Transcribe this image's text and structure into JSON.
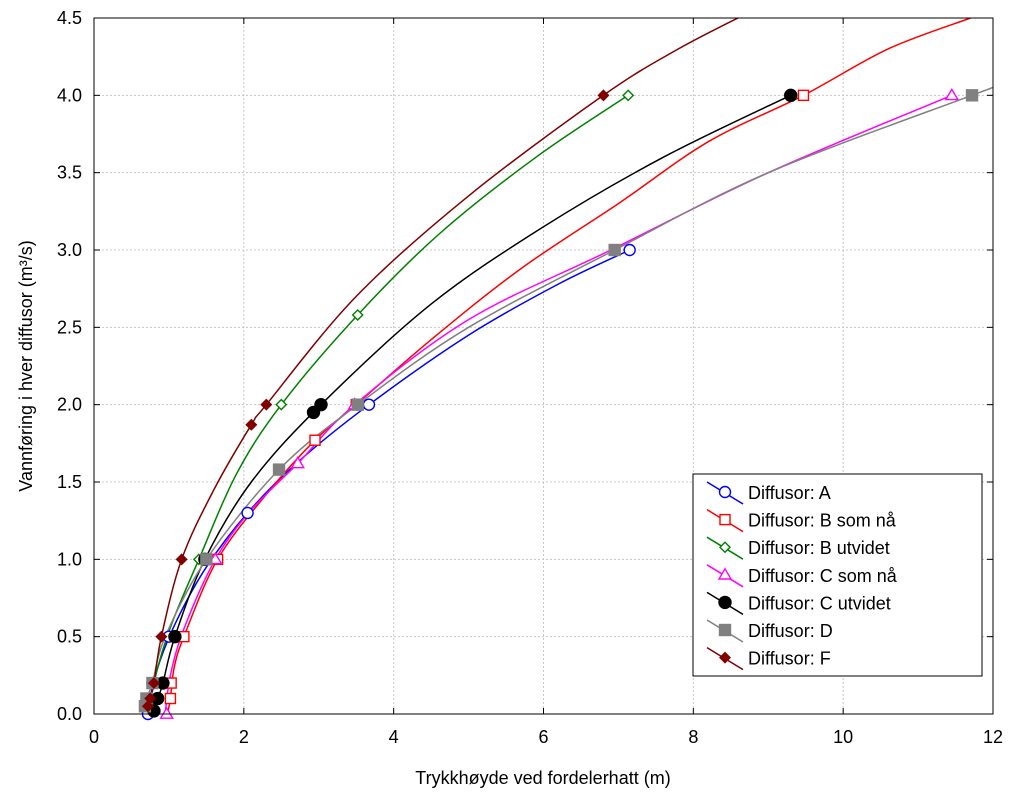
{
  "chart_data": {
    "type": "line",
    "xlabel": "Trykkhøyde ved fordelerhatt (m)",
    "ylabel": "Vannføring i hver diffusor (m³/s)",
    "xlim": [
      0,
      12
    ],
    "ylim": [
      0,
      4.5
    ],
    "xticks": [
      "0",
      "2",
      "4",
      "6",
      "8",
      "10",
      "12"
    ],
    "yticks": [
      "0.0",
      "0.5",
      "1.0",
      "1.5",
      "2.0",
      "2.5",
      "3.0",
      "3.5",
      "4.0",
      "4.5"
    ],
    "grid": true,
    "legend_position": "bottom-right",
    "series": [
      {
        "name": "Diffusor: A",
        "color": "#0000ff",
        "marker": "circle-open",
        "points": [
          [
            0.72,
            0.0
          ],
          [
            0.78,
            0.2
          ],
          [
            1.0,
            0.5
          ],
          [
            2.05,
            1.3
          ],
          [
            3.67,
            2.0
          ],
          [
            7.15,
            3.0
          ]
        ],
        "curve": [
          [
            0.7,
            0.0
          ],
          [
            0.85,
            0.3
          ],
          [
            1.1,
            0.6
          ],
          [
            1.5,
            0.95
          ],
          [
            2.05,
            1.3
          ],
          [
            2.7,
            1.62
          ],
          [
            3.67,
            2.0
          ],
          [
            5.0,
            2.45
          ],
          [
            6.2,
            2.78
          ],
          [
            7.15,
            3.0
          ]
        ]
      },
      {
        "name": "Diffusor: B som nå",
        "color": "#ff0000",
        "marker": "square-open",
        "points": [
          [
            1.02,
            0.1
          ],
          [
            1.03,
            0.2
          ],
          [
            1.2,
            0.5
          ],
          [
            1.65,
            1.0
          ],
          [
            2.95,
            1.77
          ],
          [
            3.5,
            2.0
          ],
          [
            9.47,
            4.0
          ]
        ],
        "curve": [
          [
            0.98,
            0.0
          ],
          [
            1.02,
            0.1
          ],
          [
            1.07,
            0.3
          ],
          [
            1.2,
            0.5
          ],
          [
            1.65,
            1.0
          ],
          [
            2.3,
            1.42
          ],
          [
            2.95,
            1.77
          ],
          [
            3.5,
            2.0
          ],
          [
            4.5,
            2.42
          ],
          [
            5.7,
            2.88
          ],
          [
            7.0,
            3.3
          ],
          [
            8.2,
            3.7
          ],
          [
            9.47,
            4.0
          ],
          [
            10.6,
            4.3
          ],
          [
            11.7,
            4.5
          ]
        ]
      },
      {
        "name": "Diffusor: B utvidet",
        "color": "#008000",
        "marker": "diamond-open",
        "points": [
          [
            0.75,
            0.05
          ],
          [
            1.4,
            1.0
          ],
          [
            2.5,
            2.0
          ],
          [
            3.52,
            2.58
          ],
          [
            7.13,
            4.0
          ]
        ],
        "curve": [
          [
            0.72,
            0.0
          ],
          [
            0.85,
            0.3
          ],
          [
            1.05,
            0.6
          ],
          [
            1.4,
            1.0
          ],
          [
            1.9,
            1.55
          ],
          [
            2.5,
            2.0
          ],
          [
            3.52,
            2.58
          ],
          [
            4.6,
            3.1
          ],
          [
            5.9,
            3.6
          ],
          [
            7.13,
            4.0
          ]
        ]
      },
      {
        "name": "Diffusor: C som nå",
        "color": "#ff00ff",
        "marker": "triangle-open",
        "points": [
          [
            0.97,
            0.0
          ],
          [
            1.62,
            1.0
          ],
          [
            2.72,
            1.62
          ],
          [
            3.48,
            2.0
          ],
          [
            11.45,
            4.0
          ]
        ],
        "curve": [
          [
            0.95,
            0.0
          ],
          [
            1.02,
            0.25
          ],
          [
            1.2,
            0.55
          ],
          [
            1.62,
            1.0
          ],
          [
            2.1,
            1.32
          ],
          [
            2.72,
            1.62
          ],
          [
            3.48,
            2.0
          ],
          [
            5.0,
            2.55
          ],
          [
            6.9,
            3.0
          ],
          [
            9.0,
            3.5
          ],
          [
            11.45,
            4.0
          ]
        ]
      },
      {
        "name": "Diffusor: C utvidet",
        "color": "#000000",
        "marker": "circle-filled",
        "points": [
          [
            0.8,
            0.02
          ],
          [
            0.85,
            0.1
          ],
          [
            0.92,
            0.2
          ],
          [
            1.08,
            0.5
          ],
          [
            1.48,
            1.0
          ],
          [
            2.93,
            1.95
          ],
          [
            3.03,
            2.0
          ],
          [
            9.3,
            4.0
          ]
        ],
        "curve": [
          [
            0.78,
            0.0
          ],
          [
            0.85,
            0.1
          ],
          [
            0.92,
            0.2
          ],
          [
            1.08,
            0.5
          ],
          [
            1.48,
            1.0
          ],
          [
            2.1,
            1.5
          ],
          [
            3.03,
            2.0
          ],
          [
            4.5,
            2.65
          ],
          [
            6.0,
            3.15
          ],
          [
            7.6,
            3.6
          ],
          [
            9.3,
            4.0
          ]
        ]
      },
      {
        "name": "Diffusor: D",
        "color": "#808080",
        "marker": "square-filled",
        "points": [
          [
            0.68,
            0.05
          ],
          [
            0.7,
            0.1
          ],
          [
            0.78,
            0.2
          ],
          [
            1.5,
            1.0
          ],
          [
            2.47,
            1.58
          ],
          [
            3.52,
            2.0
          ],
          [
            6.95,
            3.0
          ],
          [
            11.72,
            4.0
          ]
        ],
        "curve": [
          [
            0.66,
            0.0
          ],
          [
            0.7,
            0.1
          ],
          [
            0.78,
            0.2
          ],
          [
            0.95,
            0.5
          ],
          [
            1.5,
            1.0
          ],
          [
            2.47,
            1.58
          ],
          [
            3.52,
            2.0
          ],
          [
            5.0,
            2.5
          ],
          [
            6.95,
            3.0
          ],
          [
            9.0,
            3.5
          ],
          [
            11.72,
            4.0
          ],
          [
            12.0,
            4.05
          ]
        ]
      },
      {
        "name": "Diffusor: F",
        "color": "#800000",
        "marker": "diamond-filled",
        "points": [
          [
            0.72,
            0.05
          ],
          [
            0.75,
            0.1
          ],
          [
            0.8,
            0.2
          ],
          [
            0.9,
            0.5
          ],
          [
            1.17,
            1.0
          ],
          [
            2.1,
            1.87
          ],
          [
            2.3,
            2.0
          ],
          [
            6.8,
            4.0
          ]
        ],
        "curve": [
          [
            0.7,
            0.0
          ],
          [
            0.75,
            0.1
          ],
          [
            0.8,
            0.2
          ],
          [
            0.9,
            0.5
          ],
          [
            1.17,
            1.0
          ],
          [
            1.6,
            1.45
          ],
          [
            2.1,
            1.87
          ],
          [
            2.3,
            2.0
          ],
          [
            3.5,
            2.7
          ],
          [
            5.0,
            3.35
          ],
          [
            6.8,
            4.0
          ],
          [
            7.8,
            4.3
          ],
          [
            8.8,
            4.55
          ]
        ]
      }
    ]
  }
}
